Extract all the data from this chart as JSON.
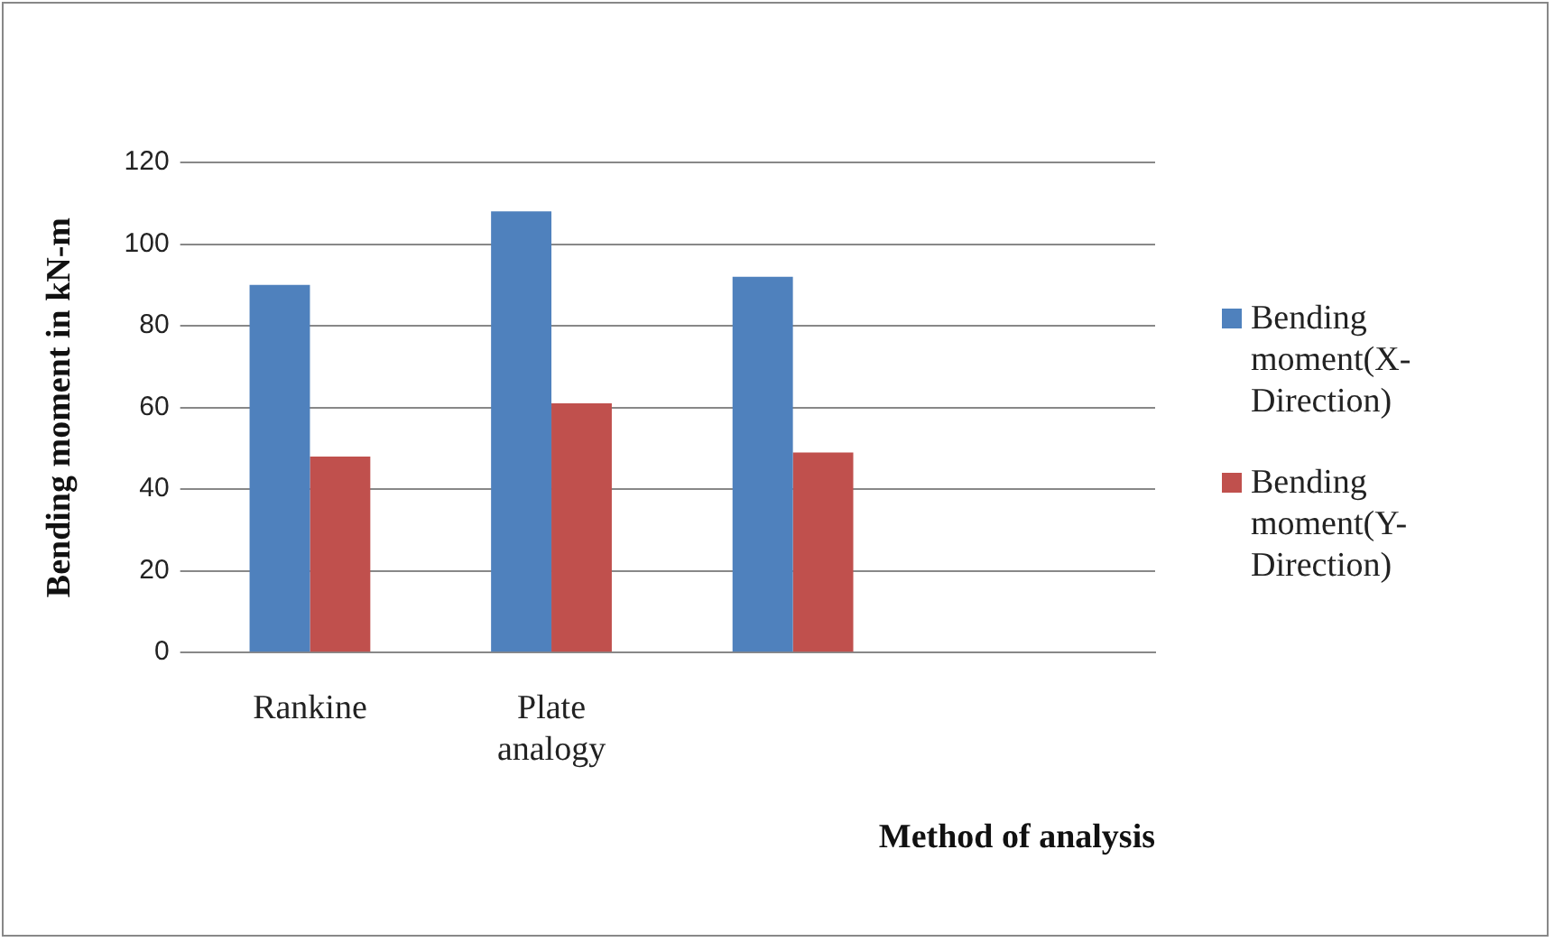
{
  "chart_data": {
    "type": "bar",
    "xlabel": "Method of analysis",
    "ylabel": "Bending moment in kN-m",
    "categories": [
      "Rankine",
      "Plate analogy",
      null,
      null
    ],
    "series": [
      {
        "name": "Bending moment(X-Direction)",
        "color": "#4f81bd",
        "values": [
          90,
          108,
          92,
          null
        ]
      },
      {
        "name": "Bending moment(Y-Direction)",
        "color": "#c0504d",
        "values": [
          48,
          61,
          49,
          null
        ]
      }
    ],
    "ylim": [
      0,
      120
    ],
    "yticks": [
      0,
      20,
      40,
      60,
      80,
      100,
      120
    ],
    "grid": "y",
    "legend": "right"
  }
}
